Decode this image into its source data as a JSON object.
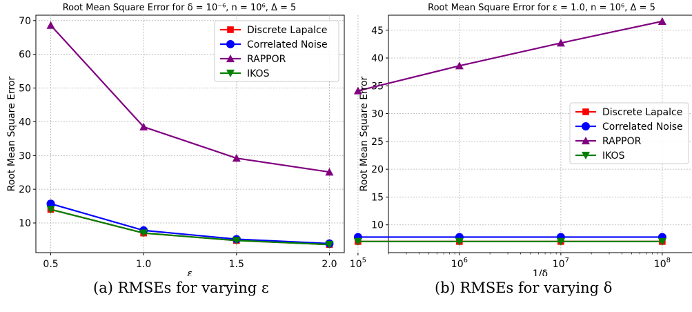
{
  "chart_data": [
    {
      "type": "line",
      "title": "Root Mean Square Error for δ = 10⁻⁶, n = 10⁶, Δ = 5",
      "xlabel": "ε",
      "ylabel": "Root Mean Square Error",
      "xscale": "linear",
      "xlim": [
        0.42,
        2.08
      ],
      "ylim": [
        1.2,
        71.6
      ],
      "x": [
        0.5,
        1.0,
        1.5,
        2.0
      ],
      "xticks": [
        "0.5",
        "1.0",
        "1.5",
        "2.0"
      ],
      "yticks": [
        10,
        20,
        30,
        40,
        50,
        60,
        70
      ],
      "grid": true,
      "legend_position": "top-right",
      "series": [
        {
          "name": "Discrete Lapalce",
          "color": "#ff0000",
          "marker": "square",
          "values": [
            14.0,
            7.0,
            4.8,
            3.6
          ]
        },
        {
          "name": "Correlated Noise",
          "color": "#0000ff",
          "marker": "circle",
          "values": [
            15.7,
            7.8,
            5.2,
            3.9
          ]
        },
        {
          "name": "RAPPOR",
          "color": "#800080",
          "marker": "triangle-up",
          "values": [
            68.6,
            38.5,
            29.2,
            25.1
          ]
        },
        {
          "name": "IKOS",
          "color": "#008000",
          "marker": "triangle-down",
          "values": [
            14.0,
            7.0,
            4.8,
            3.6
          ]
        }
      ],
      "caption": "(a) RMSEs for varying ε"
    },
    {
      "type": "line",
      "title": "Root Mean Square Error for ε = 1.0, n = 10⁶, Δ = 5",
      "xlabel": "1/δ",
      "ylabel": "Root Mean Square Error",
      "xscale": "log",
      "xlim": [
        5.3,
        8.3
      ],
      "ylim": [
        5.0,
        47.7
      ],
      "x": [
        100000,
        1000000,
        10000000,
        100000000
      ],
      "xtick_bases": [
        "10",
        "10",
        "10",
        "10"
      ],
      "xtick_exps": [
        "5",
        "6",
        "7",
        "8"
      ],
      "yticks": [
        10,
        15,
        20,
        25,
        30,
        35,
        40,
        45
      ],
      "grid": true,
      "legend_position": "center-right",
      "series": [
        {
          "name": "Discrete Lapalce",
          "color": "#ff0000",
          "marker": "square",
          "values": [
            7.0,
            7.0,
            7.0,
            7.0
          ]
        },
        {
          "name": "Correlated Noise",
          "color": "#0000ff",
          "marker": "circle",
          "values": [
            7.8,
            7.8,
            7.8,
            7.8
          ]
        },
        {
          "name": "RAPPOR",
          "color": "#800080",
          "marker": "triangle-up",
          "values": [
            34.1,
            38.6,
            42.7,
            46.6
          ]
        },
        {
          "name": "IKOS",
          "color": "#008000",
          "marker": "triangle-down",
          "values": [
            7.0,
            7.0,
            7.0,
            7.0
          ]
        }
      ],
      "caption": "(b) RMSEs for varying δ"
    }
  ]
}
